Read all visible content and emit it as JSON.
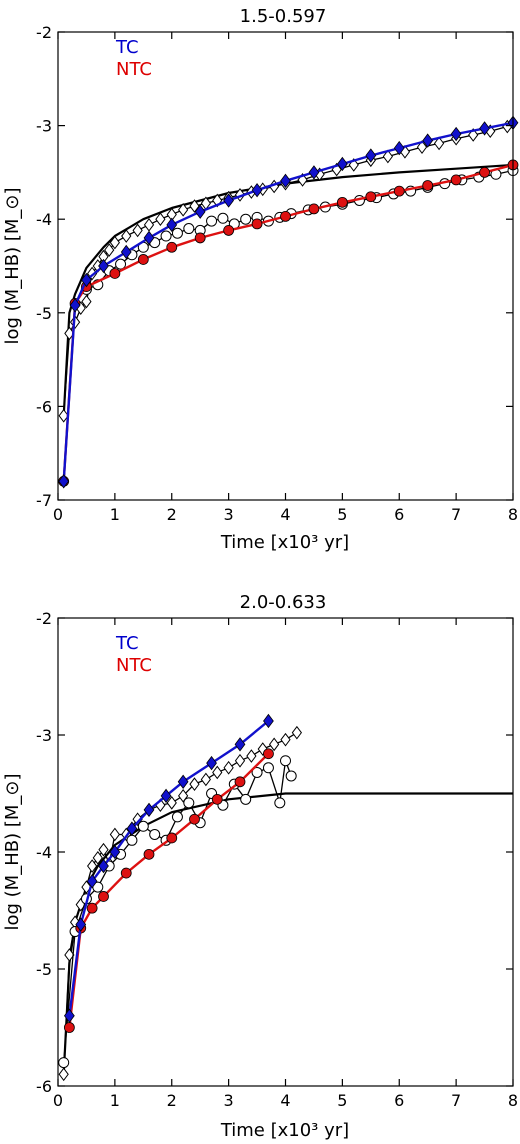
{
  "chart_data": [
    {
      "type": "line",
      "title": "1.5-0.597",
      "xlabel": "Time [x10³ yr]",
      "ylabel": "log (M_HB) [M_⊙]",
      "xlim": [
        0,
        8
      ],
      "ylim": [
        -7,
        -2
      ],
      "x_ticks": [
        "0",
        "1",
        "2",
        "3",
        "4",
        "5",
        "6",
        "7",
        "8"
      ],
      "y_ticks": [
        "-7",
        "-6",
        "-5",
        "-4",
        "-3",
        "-2"
      ],
      "grid": false,
      "legend": [
        {
          "label": "TC",
          "color": "#0000cc"
        },
        {
          "label": "NTC",
          "color": "#dd0000"
        }
      ],
      "series": [
        {
          "name": "TC",
          "style": "blue-diamond-line",
          "color": "#1111cc",
          "x": [
            0.1,
            0.3,
            0.5,
            0.8,
            1.2,
            1.6,
            2.0,
            2.5,
            3.0,
            3.5,
            4.0,
            4.5,
            5.0,
            5.5,
            6.0,
            6.5,
            7.0,
            7.5,
            8.0
          ],
          "y": [
            -6.8,
            -4.92,
            -4.65,
            -4.5,
            -4.35,
            -4.2,
            -4.06,
            -3.92,
            -3.8,
            -3.69,
            -3.59,
            -3.5,
            -3.41,
            -3.32,
            -3.24,
            -3.16,
            -3.09,
            -3.03,
            -2.97
          ]
        },
        {
          "name": "NTC",
          "style": "red-circle-line",
          "color": "#dd1111",
          "x": [
            0.1,
            0.3,
            0.5,
            1.0,
            1.5,
            2.0,
            2.5,
            3.0,
            3.5,
            4.0,
            4.5,
            5.0,
            5.5,
            6.0,
            6.5,
            7.0,
            7.5,
            8.0
          ],
          "y": [
            -6.8,
            -4.9,
            -4.72,
            -4.58,
            -4.43,
            -4.3,
            -4.2,
            -4.12,
            -4.05,
            -3.97,
            -3.89,
            -3.82,
            -3.76,
            -3.7,
            -3.64,
            -3.58,
            -3.5,
            -3.42
          ]
        },
        {
          "name": "",
          "style": "black-line",
          "x": [
            0.1,
            0.2,
            0.3,
            0.5,
            0.8,
            1.0,
            1.5,
            2.0,
            3.0,
            4.0,
            5.0,
            6.0,
            7.0,
            8.0
          ],
          "y": [
            -6.1,
            -5.0,
            -4.8,
            -4.52,
            -4.3,
            -4.18,
            -4.0,
            -3.88,
            -3.72,
            -3.62,
            -3.55,
            -3.5,
            -3.46,
            -3.42
          ]
        },
        {
          "name": "",
          "style": "open-diamond",
          "x": [
            0.1,
            0.2,
            0.3,
            0.4,
            0.5,
            0.6,
            0.7,
            0.8,
            0.9,
            1.0,
            1.2,
            1.4,
            1.6,
            1.8,
            2.0,
            2.2,
            2.4,
            2.6,
            2.8,
            3.0,
            3.2,
            3.4,
            3.6,
            3.8,
            4.0,
            4.3,
            4.6,
            4.9,
            5.2,
            5.5,
            5.8,
            6.1,
            6.4,
            6.7,
            7.0,
            7.3,
            7.6,
            7.9
          ],
          "y": [
            -6.1,
            -5.22,
            -5.1,
            -4.95,
            -4.88,
            -4.58,
            -4.5,
            -4.4,
            -4.33,
            -4.25,
            -4.18,
            -4.12,
            -4.06,
            -4.0,
            -3.95,
            -3.9,
            -3.86,
            -3.83,
            -3.8,
            -3.77,
            -3.74,
            -3.71,
            -3.68,
            -3.65,
            -3.62,
            -3.58,
            -3.52,
            -3.47,
            -3.42,
            -3.37,
            -3.33,
            -3.28,
            -3.23,
            -3.19,
            -3.14,
            -3.1,
            -3.06,
            -3.01
          ]
        },
        {
          "name": "",
          "style": "open-circle",
          "x": [
            0.5,
            0.7,
            0.9,
            1.1,
            1.3,
            1.5,
            1.7,
            1.9,
            2.1,
            2.3,
            2.5,
            2.7,
            2.9,
            3.1,
            3.3,
            3.5,
            3.7,
            3.9,
            4.1,
            4.4,
            4.7,
            5.0,
            5.3,
            5.6,
            5.9,
            6.2,
            6.5,
            6.8,
            7.1,
            7.4,
            7.7,
            8.0
          ],
          "y": [
            -4.75,
            -4.7,
            -4.55,
            -4.48,
            -4.38,
            -4.3,
            -4.25,
            -4.18,
            -4.15,
            -4.1,
            -4.12,
            -4.02,
            -3.99,
            -4.05,
            -4.0,
            -3.98,
            -4.02,
            -3.98,
            -3.94,
            -3.9,
            -3.87,
            -3.84,
            -3.8,
            -3.77,
            -3.73,
            -3.7,
            -3.66,
            -3.62,
            -3.58,
            -3.55,
            -3.52,
            -3.48
          ]
        }
      ]
    },
    {
      "type": "line",
      "title": "2.0-0.633",
      "xlabel": "Time [x10³ yr]",
      "ylabel": "log (M_HB) [M_⊙]",
      "xlim": [
        0,
        8
      ],
      "ylim": [
        -6,
        -2
      ],
      "x_ticks": [
        "0",
        "1",
        "2",
        "3",
        "4",
        "5",
        "6",
        "7",
        "8"
      ],
      "y_ticks": [
        "-6",
        "-5",
        "-4",
        "-3",
        "-2"
      ],
      "grid": false,
      "legend": [
        {
          "label": "TC",
          "color": "#0000cc"
        },
        {
          "label": "NTC",
          "color": "#dd0000"
        }
      ],
      "series": [
        {
          "name": "TC",
          "style": "blue-diamond-line",
          "color": "#1111cc",
          "x": [
            0.2,
            0.4,
            0.6,
            0.8,
            1.0,
            1.3,
            1.6,
            1.9,
            2.2,
            2.7,
            3.2,
            3.7
          ],
          "y": [
            -5.4,
            -4.62,
            -4.25,
            -4.12,
            -4.0,
            -3.8,
            -3.64,
            -3.52,
            -3.4,
            -3.24,
            -3.08,
            -2.88
          ]
        },
        {
          "name": "NTC",
          "style": "red-circle-line",
          "color": "#dd1111",
          "x": [
            0.2,
            0.4,
            0.6,
            0.8,
            1.2,
            1.6,
            2.0,
            2.4,
            2.8,
            3.2,
            3.7
          ],
          "y": [
            -5.5,
            -4.65,
            -4.48,
            -4.38,
            -4.18,
            -4.02,
            -3.88,
            -3.72,
            -3.55,
            -3.4,
            -3.16
          ]
        },
        {
          "name": "",
          "style": "black-line",
          "x": [
            0.1,
            0.2,
            0.3,
            0.5,
            0.7,
            1.0,
            1.5,
            2.0,
            3.0,
            4.0,
            5.0,
            6.0,
            7.0,
            8.0
          ],
          "y": [
            -5.9,
            -4.95,
            -4.6,
            -4.3,
            -4.12,
            -3.94,
            -3.78,
            -3.66,
            -3.55,
            -3.5,
            -3.5,
            -3.5,
            -3.5,
            -3.5
          ]
        },
        {
          "name": "",
          "style": "open-diamond",
          "x": [
            0.1,
            0.2,
            0.3,
            0.4,
            0.5,
            0.6,
            0.7,
            0.8,
            0.9,
            1.0,
            1.2,
            1.4,
            1.6,
            1.8,
            2.0,
            2.2,
            2.4,
            2.6,
            2.8,
            3.0,
            3.2,
            3.4,
            3.6,
            3.8,
            4.0,
            4.2
          ],
          "y": [
            -5.9,
            -4.88,
            -4.6,
            -4.45,
            -4.3,
            -4.12,
            -4.05,
            -3.98,
            -4.1,
            -3.85,
            -3.85,
            -3.72,
            -3.64,
            -3.6,
            -3.58,
            -3.52,
            -3.42,
            -3.38,
            -3.32,
            -3.28,
            -3.22,
            -3.18,
            -3.12,
            -3.08,
            -3.04,
            -2.98
          ]
        },
        {
          "name": "",
          "style": "open-circle",
          "x": [
            0.1,
            0.3,
            0.5,
            0.7,
            0.9,
            1.1,
            1.3,
            1.5,
            1.7,
            1.9,
            2.1,
            2.3,
            2.5,
            2.7,
            2.9,
            3.1,
            3.3,
            3.5,
            3.7,
            3.9,
            4.0,
            4.1
          ],
          "y": [
            -5.8,
            -4.68,
            -4.4,
            -4.3,
            -4.12,
            -4.02,
            -3.9,
            -3.78,
            -3.85,
            -3.9,
            -3.7,
            -3.58,
            -3.75,
            -3.5,
            -3.6,
            -3.42,
            -3.55,
            -3.32,
            -3.28,
            -3.58,
            -3.22,
            -3.35
          ]
        }
      ]
    }
  ]
}
